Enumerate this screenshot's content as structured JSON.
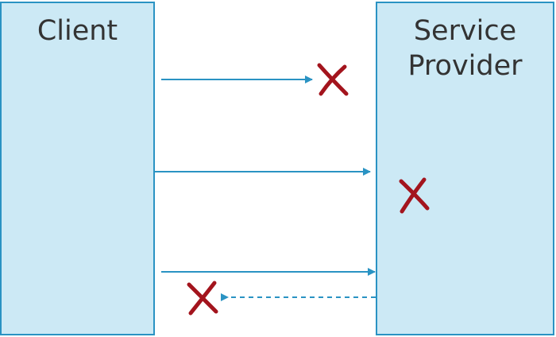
{
  "client": {
    "label": "Client"
  },
  "provider": {
    "label": "Service\nProvider"
  },
  "colors": {
    "box_fill": "#cce9f5",
    "box_border": "#2a93c3",
    "arrow": "#2a93c3",
    "failure_mark": "#a3141d",
    "text": "#333333"
  },
  "scenarios": [
    {
      "request": "lost before reaching provider",
      "failure": "request-lost-icon"
    },
    {
      "request": "delivered, provider fails",
      "failure": "provider-failure-icon"
    },
    {
      "request": "delivered, response lost",
      "failure": "response-lost-icon"
    }
  ]
}
